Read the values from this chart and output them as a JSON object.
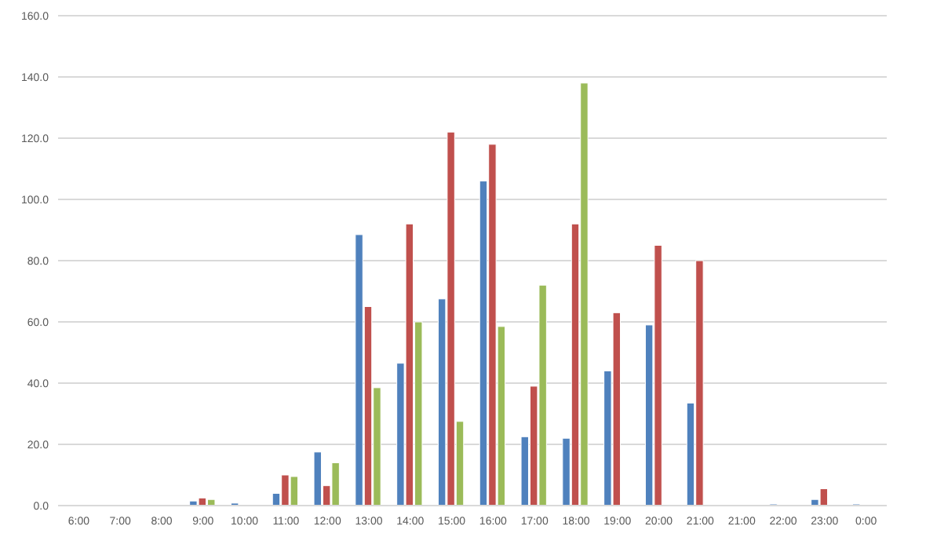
{
  "chart_data": {
    "type": "bar",
    "categories": [
      "6:00",
      "7:00",
      "8:00",
      "9:00",
      "10:00",
      "11:00",
      "12:00",
      "13:00",
      "14:00",
      "15:00",
      "16:00",
      "17:00",
      "18:00",
      "19:00",
      "20:00",
      "21:00",
      "21:00",
      "22:00",
      "23:00",
      "0:00"
    ],
    "series": [
      {
        "color": "#4f81bd",
        "values": [
          0,
          0,
          0,
          1.5,
          0.8,
          4,
          17.5,
          88.5,
          46.5,
          67.5,
          106,
          22.5,
          22,
          44,
          59,
          33.5,
          0,
          0.5,
          2,
          0.5
        ]
      },
      {
        "color": "#c0504d",
        "values": [
          0,
          0,
          0,
          2.5,
          0,
          10,
          6.5,
          65,
          92,
          122,
          118,
          39,
          92,
          63,
          85,
          80,
          0,
          0,
          5.5,
          0
        ]
      },
      {
        "color": "#9bbb59",
        "values": [
          0,
          0,
          0,
          2,
          0,
          9.5,
          14,
          38.5,
          60,
          27.5,
          58.5,
          72,
          138,
          0,
          0,
          0,
          0,
          0,
          0,
          0
        ]
      }
    ],
    "ylim": [
      0,
      160
    ],
    "yticks": [
      {
        "value": 0,
        "label": "0.0"
      },
      {
        "value": 20,
        "label": "20.0"
      },
      {
        "value": 40,
        "label": "40.0"
      },
      {
        "value": 60,
        "label": "60.0"
      },
      {
        "value": 80,
        "label": "80.0"
      },
      {
        "value": 100,
        "label": "100.0"
      },
      {
        "value": 120,
        "label": "120.0"
      },
      {
        "value": 140,
        "label": "140.0"
      },
      {
        "value": 160,
        "label": "160.0"
      }
    ],
    "grid": "y"
  }
}
